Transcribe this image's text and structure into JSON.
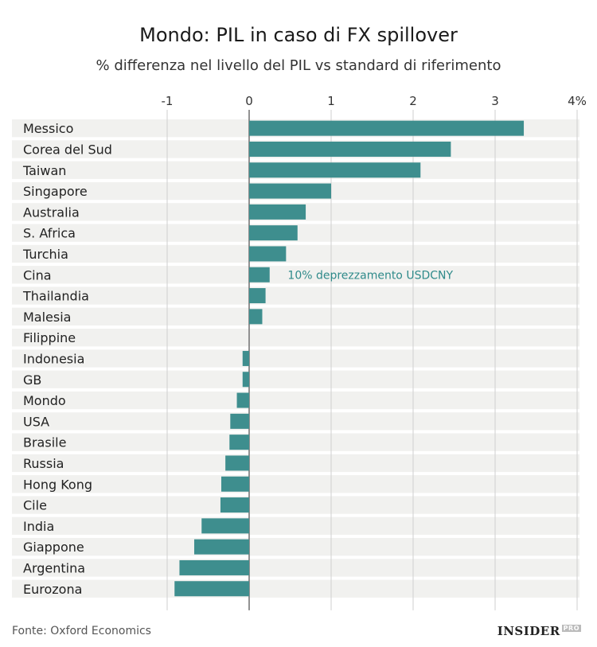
{
  "title": "Mondo: PIL in caso di FX spillover",
  "subtitle": "% differenza nel livello del PIL vs standard di riferimento",
  "source": "Fonte: Oxford Economics",
  "brand": {
    "name": "INSIDER",
    "suffix": "PRO"
  },
  "colors": {
    "bar": "#3e8e8e",
    "band": "#f1f1ef",
    "axis": "#999999",
    "annotation": "#2f8a8a"
  },
  "chart_data": {
    "type": "bar",
    "orientation": "horizontal",
    "title": "Mondo: PIL in caso di FX spillover",
    "subtitle": "% differenza nel livello del PIL vs standard di riferimento",
    "xlim": [
      -1,
      4
    ],
    "xticks": [
      -1,
      0,
      1,
      2,
      3,
      4
    ],
    "xtick_labels": [
      "-1",
      "0",
      "1",
      "2",
      "3",
      "4%"
    ],
    "categories": [
      "Messico",
      "Corea del Sud",
      "Taiwan",
      "Singapore",
      "Australia",
      "S. Africa",
      "Turchia",
      "Cina",
      "Thailandia",
      "Malesia",
      "Filippine",
      "Indonesia",
      "GB",
      "Mondo",
      "USA",
      "Brasile",
      "Russia",
      "Hong Kong",
      "Cile",
      "India",
      "Giappone",
      "Argentina",
      "Eurozona"
    ],
    "values": [
      3.35,
      2.46,
      2.09,
      1.0,
      0.69,
      0.59,
      0.45,
      0.25,
      0.2,
      0.16,
      0.0,
      -0.08,
      -0.08,
      -0.15,
      -0.23,
      -0.24,
      -0.29,
      -0.34,
      -0.35,
      -0.58,
      -0.67,
      -0.85,
      -0.91
    ],
    "annotation": {
      "text": "10% deprezzamento USDCNY",
      "category": "Cina"
    },
    "grid": true
  }
}
